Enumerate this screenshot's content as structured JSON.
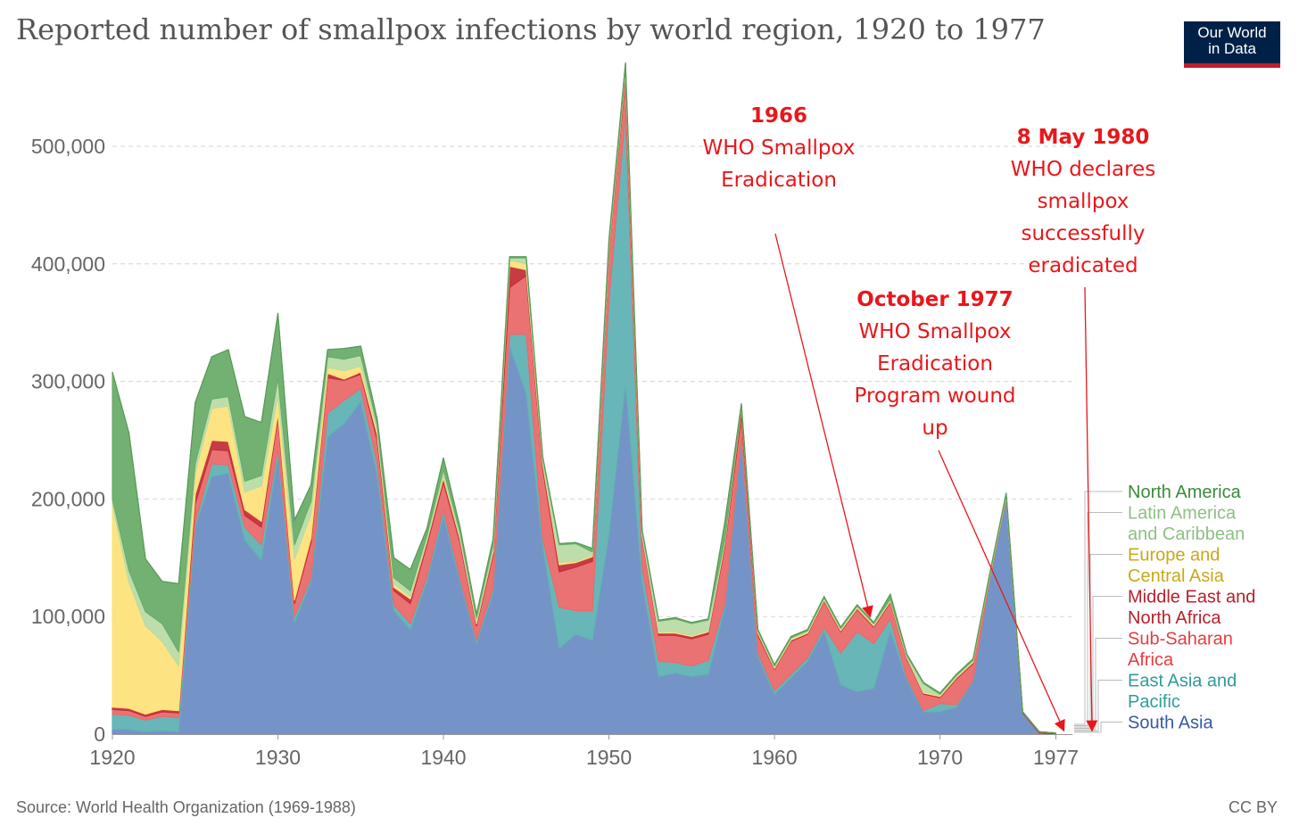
{
  "title": "Reported number of smallpox infections by world region, 1920 to 1977",
  "logo": {
    "line1": "Our World",
    "line2": "in Data"
  },
  "source": "Source: World Health Organization (1969-1988)",
  "license": "CC BY",
  "chart_data": {
    "type": "area",
    "stacked": true,
    "title": "Reported number of smallpox infections by world region, 1920 to 1977",
    "xlim": [
      1920,
      1978
    ],
    "ylim": [
      0,
      550000
    ],
    "x_ticks": [
      1920,
      1930,
      1940,
      1950,
      1960,
      1970,
      1977
    ],
    "y_ticks": [
      {
        "value": 0,
        "label": "0"
      },
      {
        "value": 100000,
        "label": "100,000"
      },
      {
        "value": 200000,
        "label": "200,000"
      },
      {
        "value": 300000,
        "label": "300,000"
      },
      {
        "value": 400000,
        "label": "400,000"
      },
      {
        "value": 500000,
        "label": "500,000"
      }
    ],
    "grid": true,
    "legend_position": "right",
    "years": [
      1920,
      1921,
      1922,
      1923,
      1924,
      1925,
      1926,
      1927,
      1928,
      1929,
      1930,
      1931,
      1932,
      1933,
      1934,
      1935,
      1936,
      1937,
      1938,
      1939,
      1940,
      1941,
      1942,
      1943,
      1944,
      1945,
      1946,
      1947,
      1948,
      1949,
      1950,
      1951,
      1952,
      1953,
      1954,
      1955,
      1956,
      1957,
      1958,
      1959,
      1960,
      1961,
      1962,
      1963,
      1964,
      1965,
      1966,
      1967,
      1968,
      1969,
      1970,
      1971,
      1972,
      1973,
      1974,
      1975,
      1976,
      1977
    ],
    "series": [
      {
        "name": "South Asia",
        "color": "#6d8ec4",
        "values": [
          4000,
          4000,
          2000,
          3000,
          2000,
          176000,
          219000,
          222000,
          165000,
          148000,
          237000,
          95000,
          130000,
          253000,
          264000,
          283000,
          220000,
          105000,
          89000,
          130000,
          186000,
          130000,
          77000,
          120000,
          330000,
          290000,
          160000,
          73000,
          85000,
          80000,
          170000,
          298000,
          130000,
          49000,
          52000,
          49000,
          51000,
          108000,
          250000,
          66000,
          34000,
          48000,
          62000,
          88000,
          42000,
          36000,
          39000,
          88000,
          46000,
          19000,
          19000,
          23000,
          45000,
          130000,
          200000,
          18000,
          1000,
          0
        ]
      },
      {
        "name": "East Asia and Pacific",
        "color": "#61b2b4",
        "values": [
          13000,
          12000,
          10000,
          12000,
          12000,
          4000,
          11000,
          7000,
          11000,
          13000,
          7000,
          5000,
          3000,
          20000,
          20000,
          11000,
          10000,
          5000,
          5000,
          4000,
          5000,
          3000,
          3000,
          4000,
          10000,
          50000,
          6000,
          35000,
          20000,
          25000,
          200000,
          230000,
          12000,
          13000,
          9000,
          9000,
          12000,
          3000,
          3000,
          3000,
          3000,
          3000,
          3000,
          3000,
          27000,
          51000,
          38000,
          10000,
          2000,
          1000,
          7000,
          2000,
          1000,
          1000,
          1000,
          0,
          0,
          0
        ]
      },
      {
        "name": "Sub-Saharan Africa",
        "color": "#ea6a6b",
        "values": [
          4000,
          4000,
          3000,
          4000,
          4000,
          16000,
          12000,
          12000,
          10000,
          15000,
          25000,
          11000,
          30000,
          30000,
          17000,
          12000,
          20000,
          12000,
          17000,
          27000,
          23000,
          30000,
          12000,
          28000,
          40000,
          50000,
          60000,
          30000,
          37000,
          42000,
          42000,
          30000,
          25000,
          22000,
          23000,
          23000,
          22000,
          48000,
          18000,
          15000,
          18000,
          28000,
          20000,
          22000,
          18000,
          19000,
          14000,
          14000,
          16000,
          14000,
          5000,
          22000,
          14000,
          1000,
          0,
          0,
          0,
          0
        ]
      },
      {
        "name": "Middle East and North Africa",
        "color": "#c2313a",
        "values": [
          2000,
          2000,
          2000,
          2000,
          2000,
          8000,
          8000,
          8000,
          5000,
          5000,
          4000,
          3000,
          4000,
          4000,
          1000,
          2000,
          5000,
          3000,
          4000,
          3000,
          4000,
          3000,
          2000,
          3000,
          18000,
          5000,
          4000,
          6000,
          4000,
          4000,
          2000,
          5000,
          2000,
          2000,
          2000,
          2000,
          2000,
          3000,
          7000,
          2000,
          1000,
          1000,
          1000,
          1000,
          1000,
          1000,
          1000,
          1000,
          1000,
          1000,
          1000,
          1000,
          1000,
          1000,
          1000,
          1000,
          1000,
          1000
        ]
      },
      {
        "name": "Europe and Central Asia",
        "color": "#fde27a",
        "values": [
          172000,
          107000,
          75000,
          58000,
          38000,
          18000,
          27000,
          30000,
          15000,
          30000,
          15000,
          35000,
          20000,
          5000,
          7000,
          5000,
          3000,
          3000,
          2000,
          1000,
          2000,
          1000,
          1000,
          1000,
          5000,
          5000,
          2000,
          2000,
          1000,
          1000,
          1000,
          1000,
          1000,
          1000,
          1000,
          1000,
          1000,
          1000,
          1000,
          1000,
          1000,
          1000,
          1000,
          1000,
          1000,
          1000,
          1000,
          1000,
          1000,
          1000,
          1000,
          1000,
          1000,
          1000,
          1000,
          0,
          0,
          0
        ]
      },
      {
        "name": "Latin America and Caribbean",
        "color": "#b9dca7",
        "values": [
          5000,
          10000,
          12000,
          15000,
          12000,
          8000,
          8000,
          8000,
          9000,
          9000,
          15000,
          12000,
          11000,
          9000,
          10000,
          9000,
          5000,
          5000,
          5000,
          4000,
          5000,
          5000,
          4000,
          5000,
          2000,
          5000,
          3000,
          15000,
          15000,
          3000,
          3000,
          3000,
          3000,
          9000,
          11000,
          10000,
          9000,
          2000,
          1000,
          1000,
          1000,
          1000,
          1000,
          1000,
          1000,
          1000,
          1000,
          1000,
          1000,
          7000,
          1000,
          1000,
          1000,
          1000,
          1000,
          0,
          0,
          0
        ]
      },
      {
        "name": "North America",
        "color": "#6aad6a",
        "values": [
          108000,
          117000,
          45000,
          36000,
          58000,
          52000,
          36000,
          40000,
          55000,
          45000,
          55000,
          21000,
          14000,
          6000,
          9000,
          8000,
          5000,
          17000,
          18000,
          6000,
          10000,
          4000,
          3000,
          5000,
          1000,
          1000,
          1000,
          1000,
          1000,
          3000,
          3000,
          4000,
          1000,
          1000,
          1000,
          1000,
          1000,
          15000,
          1000,
          1000,
          1000,
          1000,
          1000,
          1000,
          1000,
          1000,
          1000,
          4000,
          1000,
          1000,
          1000,
          1000,
          1000,
          1000,
          1000,
          0,
          0,
          0
        ]
      }
    ],
    "legend_entries": [
      {
        "lines": [
          "North America"
        ],
        "color": "#3b8a3b"
      },
      {
        "lines": [
          "Latin America",
          "and Caribbean"
        ],
        "color": "#8fbf84"
      },
      {
        "lines": [
          "Europe and",
          "Central Asia"
        ],
        "color": "#c8a81a"
      },
      {
        "lines": [
          "Middle East and",
          "North Africa"
        ],
        "color": "#b8202c"
      },
      {
        "lines": [
          "Sub-Saharan",
          "Africa"
        ],
        "color": "#e43d3f"
      },
      {
        "lines": [
          "East Asia and",
          "Pacific"
        ],
        "color": "#2f9c9b"
      },
      {
        "lines": [
          "South Asia"
        ],
        "color": "#3759a8"
      }
    ],
    "annotations": [
      {
        "lines": [
          {
            "text": "1966",
            "bold": true
          },
          {
            "text": "WHO Smallpox",
            "bold": false
          },
          {
            "text": "Eradication",
            "bold": false
          }
        ]
      },
      {
        "lines": [
          {
            "text": "October 1977",
            "bold": true
          },
          {
            "text": "WHO Smallpox",
            "bold": false
          },
          {
            "text": "Eradication",
            "bold": false
          },
          {
            "text": "Program wound",
            "bold": false
          },
          {
            "text": "up",
            "bold": false
          }
        ]
      },
      {
        "lines": [
          {
            "text": "8 May 1980",
            "bold": true
          },
          {
            "text": "WHO declares",
            "bold": false
          },
          {
            "text": "smallpox",
            "bold": false
          },
          {
            "text": "successfully",
            "bold": false
          },
          {
            "text": "eradicated",
            "bold": false
          }
        ]
      }
    ]
  }
}
